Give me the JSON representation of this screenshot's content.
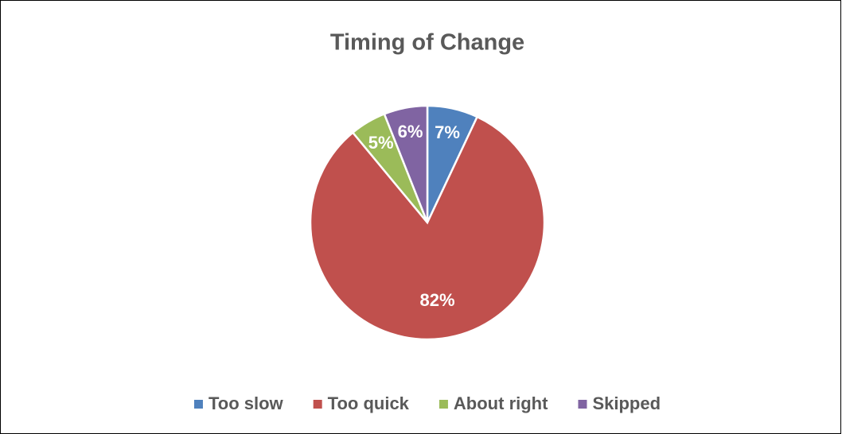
{
  "chart_data": {
    "type": "pie",
    "title": "Timing of Change",
    "categories": [
      "Too slow",
      "Too quick",
      "About right",
      "Skipped"
    ],
    "values": [
      7,
      82,
      5,
      6
    ],
    "value_labels": [
      "7%",
      "82%",
      "5%",
      "6%"
    ],
    "colors": [
      "#4f81bd",
      "#c0504d",
      "#9bbb59",
      "#8064a2"
    ],
    "legend": "bottom"
  }
}
